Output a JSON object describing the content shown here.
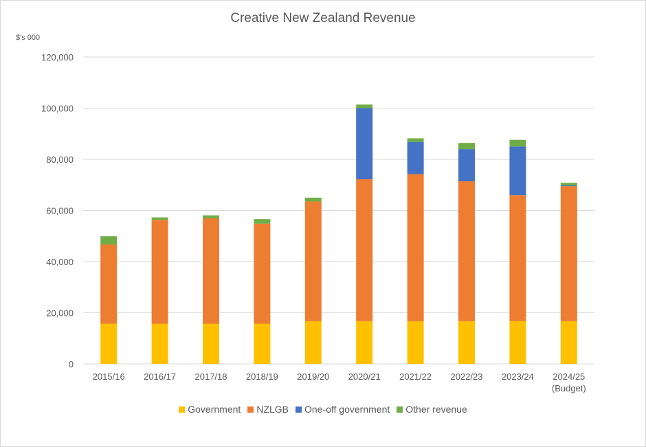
{
  "chart_data": {
    "type": "bar",
    "stacked": true,
    "title": "Creative New Zealand Revenue",
    "ylabel": "$'s 000",
    "xlabel": "",
    "ylim": [
      0,
      120000
    ],
    "yticks": [
      0,
      20000,
      40000,
      60000,
      80000,
      100000,
      120000
    ],
    "ytick_labels": [
      "0",
      "20,000",
      "40,000",
      "60,000",
      "80,000",
      "100,000",
      "120,000"
    ],
    "grid": true,
    "legend_position": "bottom",
    "categories": [
      "2015/16",
      "2016/17",
      "2017/18",
      "2018/19",
      "2019/20",
      "2020/21",
      "2021/22",
      "2022/23",
      "2023/24",
      "2024/25 (Budget)"
    ],
    "series": [
      {
        "name": "Government",
        "color": "#FFC000",
        "values": [
          15700,
          15700,
          15700,
          15700,
          16700,
          16700,
          16700,
          16700,
          16700,
          16700
        ]
      },
      {
        "name": "NZLGB",
        "color": "#ED7D31",
        "values": [
          31000,
          40600,
          41200,
          39100,
          46800,
          55500,
          57500,
          54700,
          49300,
          52800
        ]
      },
      {
        "name": "One-off government",
        "color": "#4472C4",
        "values": [
          0,
          0,
          0,
          0,
          0,
          27800,
          12600,
          12600,
          19000,
          300
        ]
      },
      {
        "name": "Other revenue",
        "color": "#70AD47",
        "values": [
          3200,
          1000,
          1200,
          1800,
          1500,
          1400,
          1400,
          2400,
          2600,
          1000
        ]
      }
    ]
  },
  "labels": {
    "title": "Creative New Zealand Revenue",
    "unit": "$'s 000",
    "x_ticks": [
      {
        "line1": "2015/16",
        "line2": ""
      },
      {
        "line1": "2016/17",
        "line2": ""
      },
      {
        "line1": "2017/18",
        "line2": ""
      },
      {
        "line1": "2018/19",
        "line2": ""
      },
      {
        "line1": "2019/20",
        "line2": ""
      },
      {
        "line1": "2020/21",
        "line2": ""
      },
      {
        "line1": "2021/22",
        "line2": ""
      },
      {
        "line1": "2022/23",
        "line2": ""
      },
      {
        "line1": "2023/24",
        "line2": ""
      },
      {
        "line1": "2024/25",
        "line2": "(Budget)"
      }
    ],
    "legend": [
      "Government",
      "NZLGB",
      "One-off government",
      "Other revenue"
    ]
  }
}
